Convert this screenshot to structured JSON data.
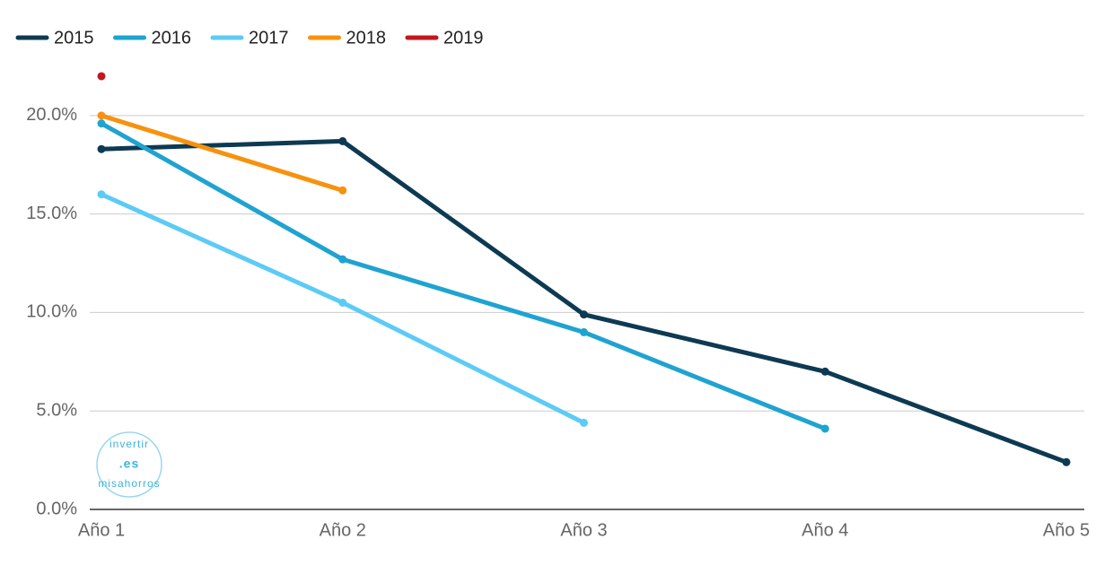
{
  "chart_data": {
    "type": "line",
    "categories": [
      "Año 1",
      "Año 2",
      "Año 3",
      "Año 4",
      "Año 5"
    ],
    "series": [
      {
        "name": "2015",
        "color": "#0d3a52",
        "values": [
          18.3,
          18.7,
          9.9,
          7.0,
          2.4
        ]
      },
      {
        "name": "2016",
        "color": "#1fa3d1",
        "values": [
          19.6,
          12.7,
          9.0,
          4.1,
          null
        ]
      },
      {
        "name": "2017",
        "color": "#5ccbf5",
        "values": [
          16.0,
          10.5,
          4.4,
          null,
          null
        ]
      },
      {
        "name": "2018",
        "color": "#f7920e",
        "values": [
          20.0,
          16.2,
          null,
          null,
          null
        ]
      },
      {
        "name": "2019",
        "color": "#c4161c",
        "values": [
          22.0,
          null,
          null,
          null,
          null
        ]
      }
    ],
    "ylim": [
      0,
      23
    ],
    "yticks": [
      {
        "value": 0,
        "label": "0.0%"
      },
      {
        "value": 5,
        "label": "5.0%"
      },
      {
        "value": 10,
        "label": "10.0%"
      },
      {
        "value": 15,
        "label": "15.0%"
      },
      {
        "value": 20,
        "label": "20.0%"
      }
    ],
    "grid": true,
    "legend": "top",
    "watermark": {
      "top": "invertir",
      "center": ".es",
      "bottom": "misahorros"
    }
  }
}
